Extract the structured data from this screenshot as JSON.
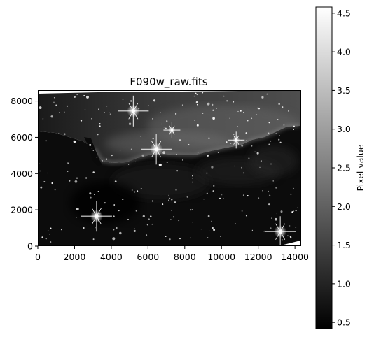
{
  "chart_data": {
    "type": "heatmap",
    "title": "F090w_raw.fits",
    "xlabel": "",
    "ylabel": "",
    "xlim": [
      0,
      14300
    ],
    "ylim": [
      0,
      8600
    ],
    "x_ticks": [
      0,
      2000,
      4000,
      6000,
      8000,
      10000,
      12000,
      14000
    ],
    "y_ticks": [
      0,
      2000,
      4000,
      6000,
      8000
    ],
    "grid": false,
    "colormap": "gray",
    "colorbar": {
      "label": "Pixel value",
      "range": [
        0.42,
        4.58
      ],
      "ticks": [
        "0.5",
        "1.0",
        "1.5",
        "2.0",
        "2.5",
        "3.0",
        "3.5",
        "4.0",
        "4.5"
      ],
      "tick_values": [
        0.5,
        1.0,
        1.5,
        2.0,
        2.5,
        3.0,
        3.5,
        4.0,
        4.5
      ],
      "low_color": "#000000",
      "high_color": "#ffffff"
    },
    "bright_stars": [
      {
        "x": 5200,
        "y": 7450
      },
      {
        "x": 6450,
        "y": 5350
      },
      {
        "x": 3200,
        "y": 1650
      },
      {
        "x": 13200,
        "y": 800
      },
      {
        "x": 10800,
        "y": 5850
      },
      {
        "x": 7300,
        "y": 6400
      }
    ]
  }
}
